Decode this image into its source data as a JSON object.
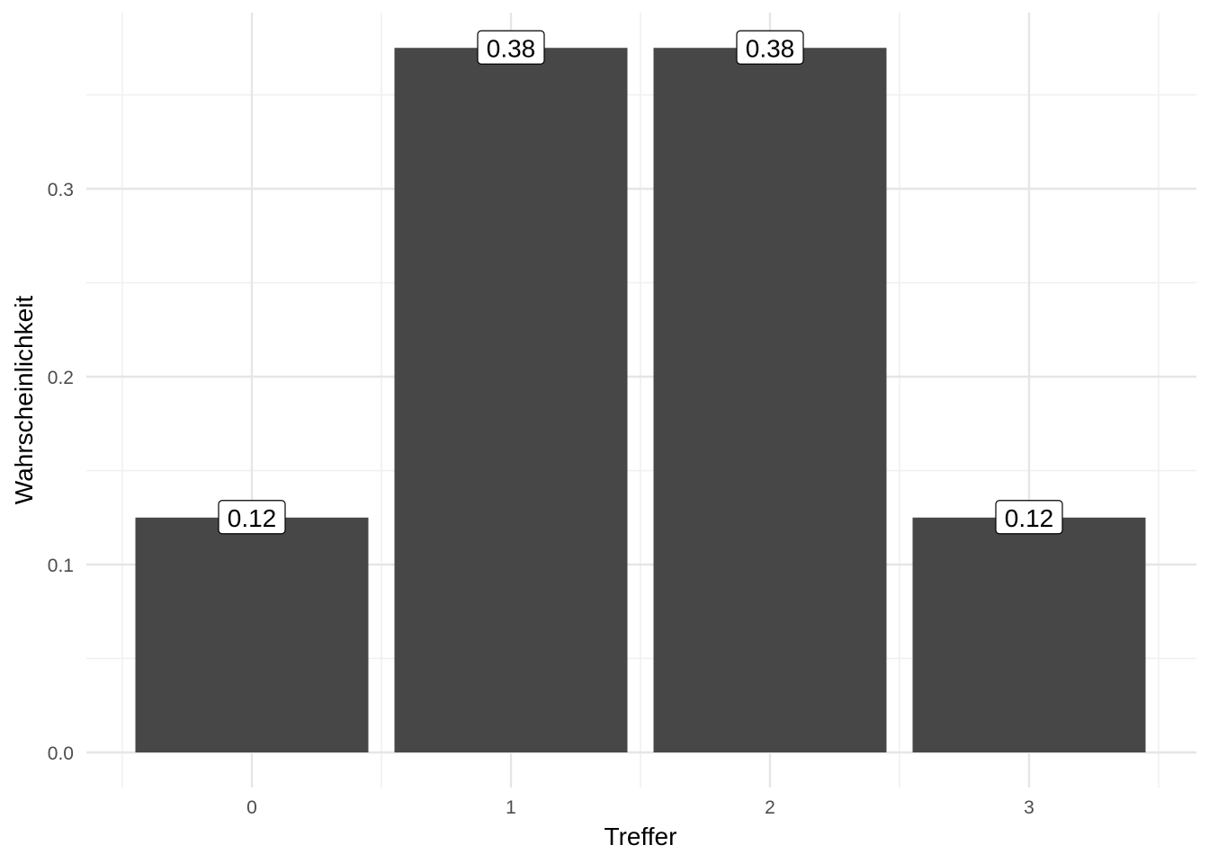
{
  "chart_data": {
    "type": "bar",
    "categories": [
      "0",
      "1",
      "2",
      "3"
    ],
    "values": [
      0.125,
      0.375,
      0.375,
      0.125
    ],
    "data_labels": [
      "0.12",
      "0.38",
      "0.38",
      "0.12"
    ],
    "xlabel": "Treffer",
    "ylabel": "Wahrscheinlichkeit",
    "ylim": [
      0,
      0.39
    ],
    "yticks": [
      0.0,
      0.1,
      0.2,
      0.3
    ],
    "ytick_labels": [
      "0.0",
      "0.1",
      "0.2",
      "0.3"
    ],
    "grid": true,
    "legend": "none",
    "bar_color": "#474747"
  }
}
